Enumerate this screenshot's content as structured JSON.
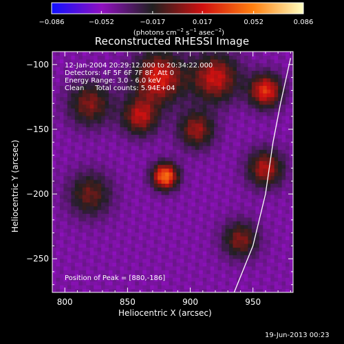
{
  "chart_data": {
    "type": "heatmap",
    "title": "Reconstructed RHESSI Image",
    "xlabel": "Heliocentric X (arcsec)",
    "ylabel": "Heliocentric Y (arcsec)",
    "xlim": [
      790,
      982
    ],
    "ylim": [
      -276,
      -90
    ],
    "x_ticks": [
      800,
      850,
      900,
      950
    ],
    "y_ticks": [
      -100,
      -150,
      -200,
      -250
    ],
    "x_tick_labels": [
      "800",
      "850",
      "900",
      "950"
    ],
    "y_tick_labels": [
      "−100",
      "−150",
      "−200",
      "−250"
    ],
    "colorbar": {
      "range": [
        -0.086,
        0.086
      ],
      "tick_values": [
        -0.086,
        -0.052,
        -0.017,
        0.017,
        0.052,
        0.086
      ],
      "tick_labels": [
        "−0.086",
        "−0.052",
        "−0.017",
        "0.017",
        "0.052",
        "0.086"
      ],
      "units": "(photons cm",
      "units_exp1": "−2",
      "units_mid": " s",
      "units_exp2": "−1",
      "units_mid2": " asec",
      "units_exp3": "−2",
      "units_end": ")",
      "colors": [
        "#1010ff",
        "#9010c0",
        "#202020",
        "#d01010",
        "#ff8010",
        "#ffffc0"
      ]
    },
    "annotations": {
      "line1": "12-Jan-2004 20:29:12.000 to 20:34:22.000",
      "line2": "Detectors: 4F 5F 6F 7F 8F, Att 0",
      "line3": "Energy Range: 3.0 - 6.0 keV",
      "line4": "Clean     Total counts: 5.94E+04",
      "peak": "Position of Peak = [880,-186]"
    },
    "peak_position": [
      880,
      -186
    ],
    "sources": [
      {
        "x": 880,
        "y": -186,
        "intensity": 0.086,
        "sigma": 7
      },
      {
        "x": 875,
        "y": -110,
        "intensity": 0.06,
        "sigma": 14
      },
      {
        "x": 920,
        "y": -110,
        "intensity": 0.055,
        "sigma": 13
      },
      {
        "x": 960,
        "y": -120,
        "intensity": 0.065,
        "sigma": 9
      },
      {
        "x": 960,
        "y": -180,
        "intensity": 0.05,
        "sigma": 10
      },
      {
        "x": 820,
        "y": -130,
        "intensity": 0.04,
        "sigma": 12
      },
      {
        "x": 820,
        "y": -200,
        "intensity": 0.035,
        "sigma": 12
      },
      {
        "x": 860,
        "y": -140,
        "intensity": 0.05,
        "sigma": 10
      },
      {
        "x": 905,
        "y": -150,
        "intensity": 0.045,
        "sigma": 10
      },
      {
        "x": 940,
        "y": -235,
        "intensity": 0.04,
        "sigma": 10
      }
    ],
    "limb_curve": [
      [
        935,
        -276
      ],
      [
        950,
        -240
      ],
      [
        960,
        -200
      ],
      [
        966,
        -160
      ],
      [
        972,
        -130
      ],
      [
        980,
        -95
      ]
    ]
  },
  "footer": {
    "date": "19-Jun-2013 00:23"
  },
  "colors": {
    "background": "#000000",
    "text": "#ffffff",
    "limb": "#ffffff"
  }
}
